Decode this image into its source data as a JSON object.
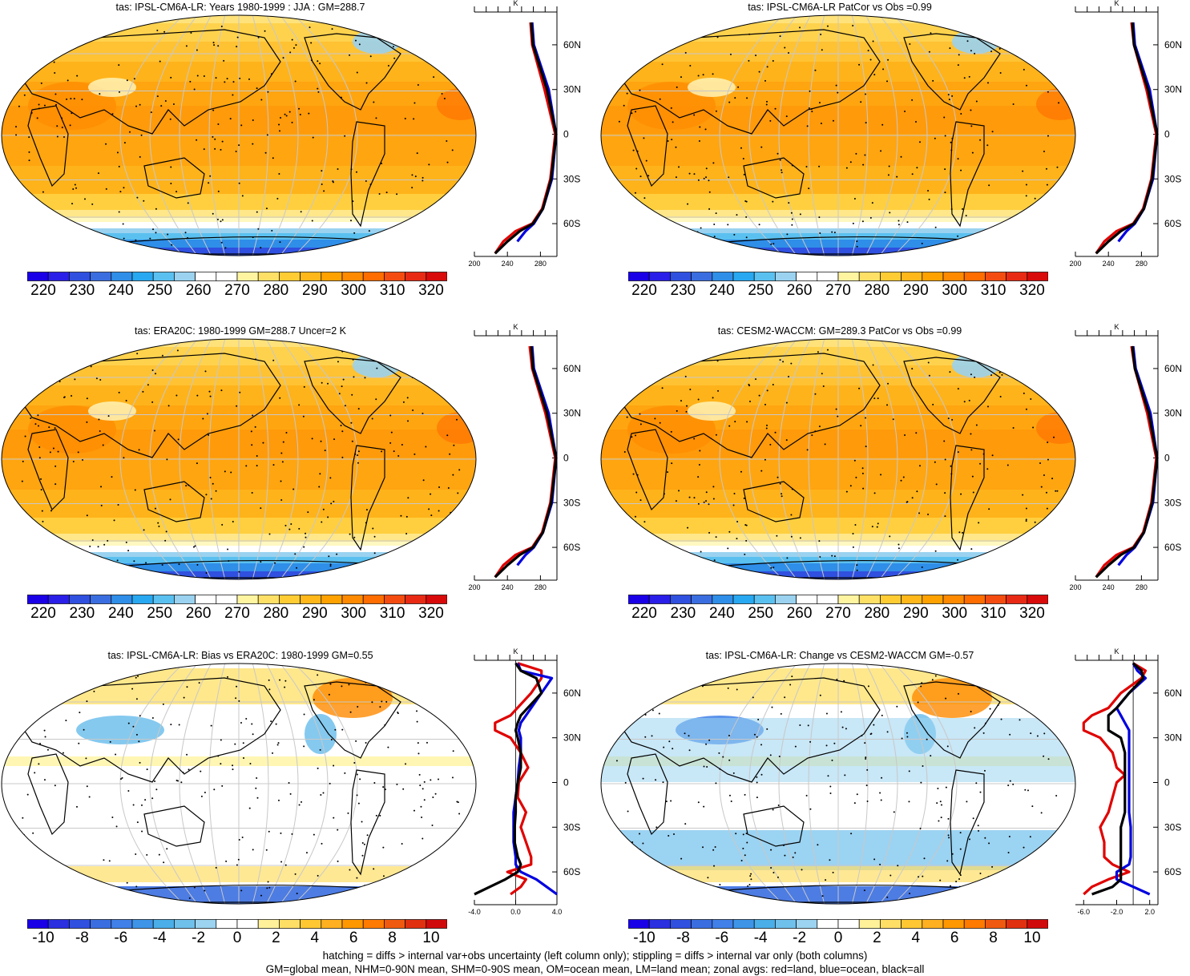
{
  "chart_data": [
    {
      "type": "heatmap",
      "title": "tas: IPSL-CM6A-LR: Years 1980-1999 : JJA : GM=288.7",
      "colorbar": {
        "ticks": [
          220,
          230,
          240,
          250,
          260,
          270,
          280,
          290,
          300,
          310,
          320
        ]
      },
      "zonal_mean": {
        "xticks": [
          200,
          240,
          280
        ],
        "yticks": [
          "60N",
          "30N",
          "0",
          "30S",
          "60S"
        ],
        "units": "K",
        "series": [
          {
            "color": "#e00000",
            "lat": [
              75,
              60,
              30,
              0,
              -30,
              -50,
              -60,
              -65,
              -72,
              -80
            ],
            "values": [
              268,
              270,
              285,
              298,
              292,
              282,
              270,
              250,
              235,
              225
            ]
          },
          {
            "color": "#0000e0",
            "lat": [
              75,
              60,
              30,
              0,
              -30,
              -50,
              -60,
              -65,
              -72
            ],
            "values": [
              270,
              272,
              290,
              299,
              294,
              283,
              272,
              262,
              252
            ]
          },
          {
            "color": "#000000",
            "lat": [
              75,
              60,
              30,
              0,
              -30,
              -50,
              -60,
              -65,
              -72,
              -80
            ],
            "values": [
              269,
              271,
              288,
              299,
              293,
              283,
              271,
              255,
              240,
              225
            ]
          }
        ]
      }
    },
    {
      "type": "heatmap",
      "title": "tas: IPSL-CM6A-LR PatCor vs Obs =0.99",
      "colorbar": {
        "ticks": [
          220,
          230,
          240,
          250,
          260,
          270,
          280,
          290,
          300,
          310,
          320
        ]
      },
      "zonal_mean": {
        "xticks": [
          200,
          240,
          280
        ],
        "yticks": [
          "60N",
          "30N",
          "0",
          "30S",
          "60S"
        ],
        "units": "K",
        "series": [
          {
            "color": "#e00000",
            "lat": [
              75,
              60,
              30,
              0,
              -30,
              -50,
              -60,
              -65,
              -72,
              -80
            ],
            "values": [
              268,
              271,
              286,
              298,
              292,
              282,
              270,
              250,
              235,
              225
            ]
          },
          {
            "color": "#0000e0",
            "lat": [
              75,
              60,
              30,
              0,
              -30,
              -50,
              -60,
              -65,
              -72
            ],
            "values": [
              270,
              272,
              290,
              299,
              294,
              283,
              272,
              262,
              252
            ]
          },
          {
            "color": "#000000",
            "lat": [
              75,
              60,
              30,
              0,
              -30,
              -50,
              -60,
              -65,
              -72,
              -80
            ],
            "values": [
              269,
              271,
              288,
              299,
              293,
              283,
              271,
              255,
              240,
              225
            ]
          }
        ]
      }
    },
    {
      "type": "heatmap",
      "title": "tas: ERA20C: 1980-1999 GM=288.7 Uncer=2 K",
      "colorbar": {
        "ticks": [
          220,
          230,
          240,
          250,
          260,
          270,
          280,
          290,
          300,
          310,
          320
        ]
      },
      "zonal_mean": {
        "xticks": [
          200,
          240,
          280
        ],
        "yticks": [
          "60N",
          "30N",
          "0",
          "30S",
          "60S"
        ],
        "units": "K",
        "series": [
          {
            "color": "#e00000",
            "lat": [
              75,
              60,
              30,
              0,
              -30,
              -50,
              -60,
              -65,
              -72,
              -80
            ],
            "values": [
              267,
              270,
              286,
              298,
              292,
              282,
              270,
              250,
              235,
              225
            ]
          },
          {
            "color": "#0000e0",
            "lat": [
              75,
              60,
              30,
              0,
              -30,
              -50,
              -60,
              -65,
              -72
            ],
            "values": [
              270,
              272,
              290,
              299,
              294,
              283,
              272,
              262,
              252
            ]
          },
          {
            "color": "#000000",
            "lat": [
              75,
              60,
              30,
              0,
              -30,
              -50,
              -60,
              -65,
              -72,
              -80
            ],
            "values": [
              269,
              271,
              288,
              299,
              293,
              283,
              271,
              255,
              240,
              225
            ]
          }
        ]
      }
    },
    {
      "type": "heatmap",
      "title": "tas: CESM2-WACCM: GM=289.3 PatCor vs Obs =0.99",
      "colorbar": {
        "ticks": [
          220,
          230,
          240,
          250,
          260,
          270,
          280,
          290,
          300,
          310,
          320
        ]
      },
      "zonal_mean": {
        "xticks": [
          200,
          240,
          280
        ],
        "yticks": [
          "60N",
          "30N",
          "0",
          "30S",
          "60S"
        ],
        "units": "K",
        "series": [
          {
            "color": "#e00000",
            "lat": [
              75,
              60,
              30,
              0,
              -30,
              -50,
              -60,
              -65,
              -72,
              -80
            ],
            "values": [
              268,
              272,
              287,
              298,
              292,
              282,
              270,
              250,
              235,
              225
            ]
          },
          {
            "color": "#0000e0",
            "lat": [
              75,
              60,
              30,
              0,
              -30,
              -50,
              -60,
              -65,
              -72
            ],
            "values": [
              270,
              273,
              291,
              299,
              294,
              283,
              272,
              262,
              252
            ]
          },
          {
            "color": "#000000",
            "lat": [
              75,
              60,
              30,
              0,
              -30,
              -50,
              -60,
              -65,
              -72,
              -80
            ],
            "values": [
              269,
              272,
              289,
              299,
              293,
              283,
              271,
              255,
              240,
              225
            ]
          }
        ]
      }
    },
    {
      "type": "heatmap",
      "title": "tas: IPSL-CM6A-LR: Bias vs ERA20C: 1980-1999 GM=0.55",
      "colorbar": {
        "ticks": [
          -10,
          -8,
          -6,
          -4,
          -2,
          0,
          2,
          4,
          6,
          8,
          10
        ]
      },
      "zonal_mean": {
        "xticks": [
          "-4.0",
          "0.0",
          "4.0"
        ],
        "yticks": [
          "60N",
          "30N",
          "0",
          "30S",
          "60S"
        ],
        "units": "K",
        "series": [
          {
            "color": "#e00000",
            "lat": [
              80,
              75,
              70,
              60,
              45,
              40,
              35,
              30,
              20,
              10,
              0,
              -10,
              -20,
              -30,
              -40,
              -50,
              -55,
              -60,
              -65,
              -70,
              -75
            ],
            "values": [
              0.2,
              2.5,
              2.5,
              1.5,
              -0.5,
              -2,
              -2,
              -0.5,
              0.5,
              1.2,
              0.3,
              0.2,
              1,
              0.5,
              1,
              1.5,
              1.5,
              -0.8,
              1,
              0.5,
              -0.5
            ]
          },
          {
            "color": "#0000e0",
            "lat": [
              80,
              75,
              70,
              60,
              45,
              40,
              35,
              30,
              20,
              10,
              0,
              -10,
              -20,
              -30,
              -40,
              -50,
              -55,
              -60,
              -65,
              -70,
              -75
            ],
            "values": [
              0.2,
              0.5,
              3.5,
              2.5,
              1,
              0.5,
              0.3,
              0.5,
              0.5,
              0.3,
              0.2,
              0,
              -0.2,
              -0.2,
              -0.2,
              0,
              0,
              0.5,
              2,
              3,
              4
            ]
          },
          {
            "color": "#000000",
            "lat": [
              80,
              75,
              70,
              60,
              45,
              40,
              35,
              30,
              20,
              10,
              0,
              -10,
              -20,
              -30,
              -40,
              -50,
              -55,
              -60,
              -65,
              -70,
              -75
            ],
            "values": [
              0,
              0.5,
              2,
              2.5,
              0.5,
              0.2,
              0,
              0.2,
              0.5,
              0.5,
              0.2,
              0,
              0,
              -0.1,
              -0.1,
              0.2,
              0.5,
              0.2,
              -1,
              -2.5,
              -4
            ]
          }
        ]
      }
    },
    {
      "type": "heatmap",
      "title": "tas: IPSL-CM6A-LR: Change vs CESM2-WACCM GM=-0.57",
      "colorbar": {
        "ticks": [
          -10,
          -8,
          -6,
          -4,
          -2,
          0,
          2,
          4,
          6,
          8,
          10
        ]
      },
      "zonal_mean": {
        "xticks": [
          "-6.0",
          "-2.0",
          "2.0"
        ],
        "yticks": [
          "60N",
          "30N",
          "0",
          "30S",
          "60S"
        ],
        "units": "K",
        "series": [
          {
            "color": "#e00000",
            "lat": [
              80,
              75,
              70,
              60,
              50,
              45,
              40,
              35,
              30,
              20,
              10,
              5,
              0,
              -10,
              -20,
              -30,
              -40,
              -50,
              -55,
              -60,
              -65,
              -70,
              -75
            ],
            "values": [
              0,
              1.5,
              1,
              -1.5,
              -3,
              -5,
              -6,
              -6,
              -4,
              -2.5,
              -2,
              -1,
              -2,
              -2.5,
              -3,
              -4,
              -3.5,
              -3.5,
              -2.5,
              -0.5,
              -3,
              -5,
              -6
            ]
          },
          {
            "color": "#0000e0",
            "lat": [
              80,
              75,
              70,
              60,
              50,
              45,
              40,
              35,
              30,
              20,
              10,
              0,
              -10,
              -20,
              -30,
              -40,
              -50,
              -55,
              -60,
              -65,
              -70,
              -75
            ],
            "values": [
              0,
              0.5,
              1.5,
              -0.5,
              -2,
              -1.5,
              -1,
              -0.5,
              -0.5,
              -0.5,
              -0.5,
              -0.5,
              -0.5,
              -0.5,
              -0.3,
              -0.3,
              -0.3,
              -0.5,
              -2,
              -2,
              0,
              2
            ]
          },
          {
            "color": "#000000",
            "lat": [
              80,
              75,
              70,
              60,
              50,
              45,
              40,
              35,
              30,
              20,
              10,
              0,
              -10,
              -20,
              -30,
              -40,
              -50,
              -55,
              -60,
              -65,
              -70,
              -75
            ],
            "values": [
              0,
              1,
              1.2,
              -0.5,
              -2,
              -3,
              -3,
              -3,
              -1.5,
              -1,
              -1,
              -1,
              -1,
              -1,
              -1.5,
              -1.5,
              -1.5,
              -1.5,
              -1.5,
              -1.5,
              -2.5,
              -5
            ]
          }
        ]
      }
    }
  ],
  "footer": {
    "line1": "hatching = diffs > internal var+obs uncertainty (left column only); stippling = diffs > internal var only (both columns)",
    "line2": "GM=global mean, NHM=0-90N mean, SHM=0-90S mean, OM=ocean mean, LM=land mean; zonal avgs: red=land, blue=ocean, black=all"
  },
  "palettes": {
    "abs": [
      "#1a00e6",
      "#2a1fe8",
      "#3050e0",
      "#3a6ee0",
      "#2f8ee8",
      "#28a8f0",
      "#5ac0f0",
      "#9ad2f0",
      "#ffffff",
      "#ffffff",
      "#fff4a0",
      "#ffe066",
      "#ffcc33",
      "#ffb71a",
      "#ffa200",
      "#ff8a00",
      "#ff6d00",
      "#f44c10",
      "#e82a14",
      "#d80a0a"
    ],
    "diff": [
      "#1a00e6",
      "#2a2fe0",
      "#3050e0",
      "#3a6ee0",
      "#4080e8",
      "#3e95e8",
      "#4aaee8",
      "#70c0ec",
      "#9bd3f0",
      "#ffffff",
      "#ffffff",
      "#fff19a",
      "#ffde66",
      "#ffc833",
      "#ffb020",
      "#ff9800",
      "#ff7a00",
      "#f05a10",
      "#e03010",
      "#d00a0a"
    ]
  }
}
